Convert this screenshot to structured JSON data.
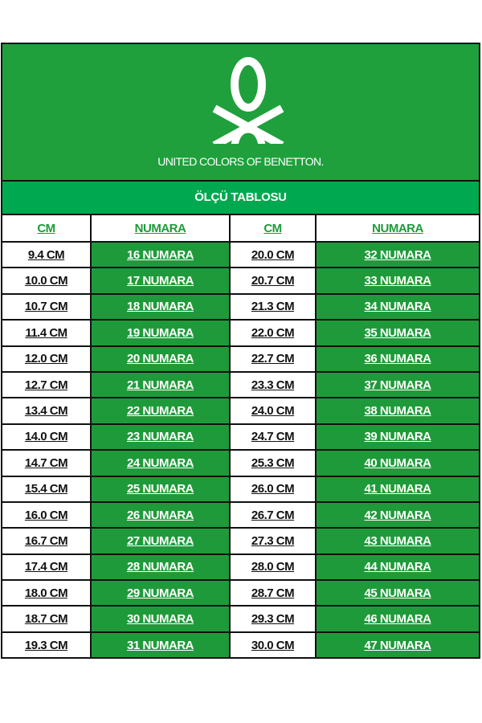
{
  "brand": {
    "name": "UNITED COLORS OF BENETTON."
  },
  "title": "ÖLÇÜ TABLOSU",
  "headers": [
    "CM",
    "NUMARA",
    "CM",
    "NUMARA"
  ],
  "colors": {
    "header_green": "#1fa03c",
    "title_green": "#00a84f",
    "cell_green": "#1f9a3a"
  },
  "rows": [
    [
      "9.4 CM",
      "16 NUMARA",
      "20.0 CM",
      "32 NUMARA"
    ],
    [
      "10.0 CM",
      "17 NUMARA",
      "20.7 CM",
      "33 NUMARA"
    ],
    [
      "10.7 CM",
      "18 NUMARA",
      "21.3 CM",
      "34 NUMARA"
    ],
    [
      "11.4 CM",
      "19 NUMARA",
      "22.0 CM",
      "35 NUMARA"
    ],
    [
      "12.0 CM",
      "20 NUMARA",
      "22.7 CM",
      "36 NUMARA"
    ],
    [
      "12.7 CM",
      "21 NUMARA",
      "23.3 CM",
      "37 NUMARA"
    ],
    [
      "13.4 CM",
      "22 NUMARA",
      "24.0 CM",
      "38 NUMARA"
    ],
    [
      "14.0 CM",
      "23 NUMARA",
      "24.7 CM",
      "39 NUMARA"
    ],
    [
      "14.7 CM",
      "24 NUMARA",
      "25.3 CM",
      "40 NUMARA"
    ],
    [
      "15.4 CM",
      "25 NUMARA",
      "26.0 CM",
      "41 NUMARA"
    ],
    [
      "16.0 CM",
      "26 NUMARA",
      "26.7 CM",
      "42 NUMARA"
    ],
    [
      "16.7 CM",
      "27 NUMARA",
      "27.3 CM",
      "43 NUMARA"
    ],
    [
      "17.4 CM",
      "28 NUMARA",
      "28.0 CM",
      "44 NUMARA"
    ],
    [
      "18.0 CM",
      "29 NUMARA",
      "28.7 CM",
      "45 NUMARA"
    ],
    [
      "18.7 CM",
      "30 NUMARA",
      "29.3 CM",
      "46 NUMARA"
    ],
    [
      "19.3 CM",
      "31 NUMARA",
      "30.0 CM",
      "47 NUMARA"
    ]
  ]
}
